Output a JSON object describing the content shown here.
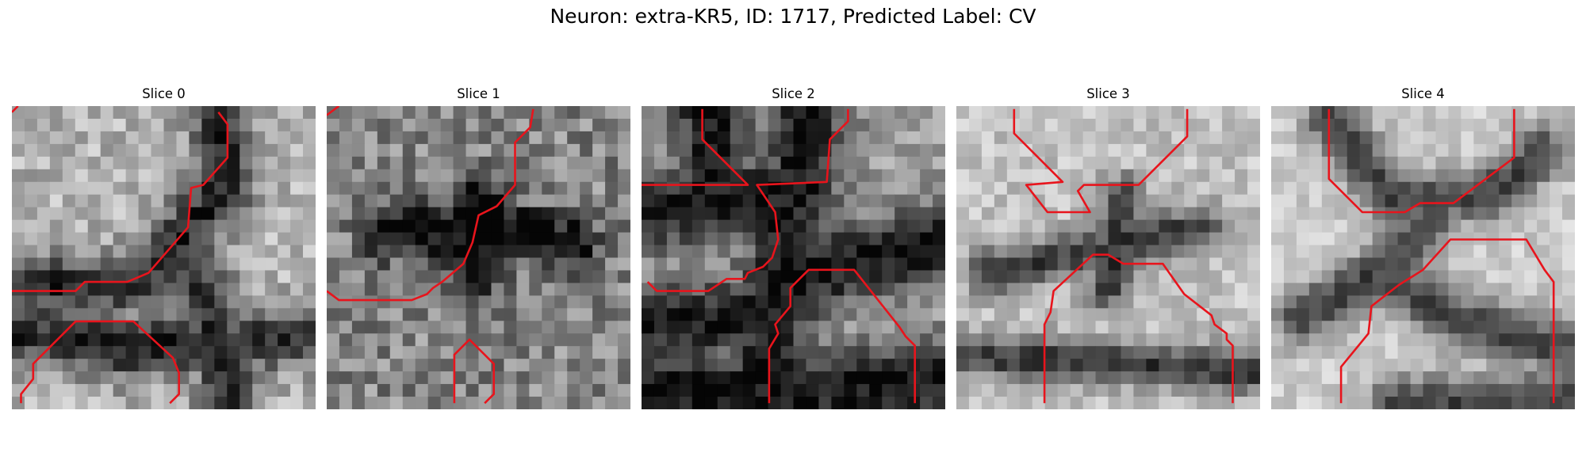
{
  "figure": {
    "title": "Neuron: extra-KR5, ID: 1717, Predicted Label: CV"
  },
  "panels": [
    {
      "title": "Slice 0"
    },
    {
      "title": "Slice 1"
    },
    {
      "title": "Slice 2"
    },
    {
      "title": "Slice 3"
    },
    {
      "title": "Slice 4"
    }
  ],
  "contour_color": "#e8141c"
}
